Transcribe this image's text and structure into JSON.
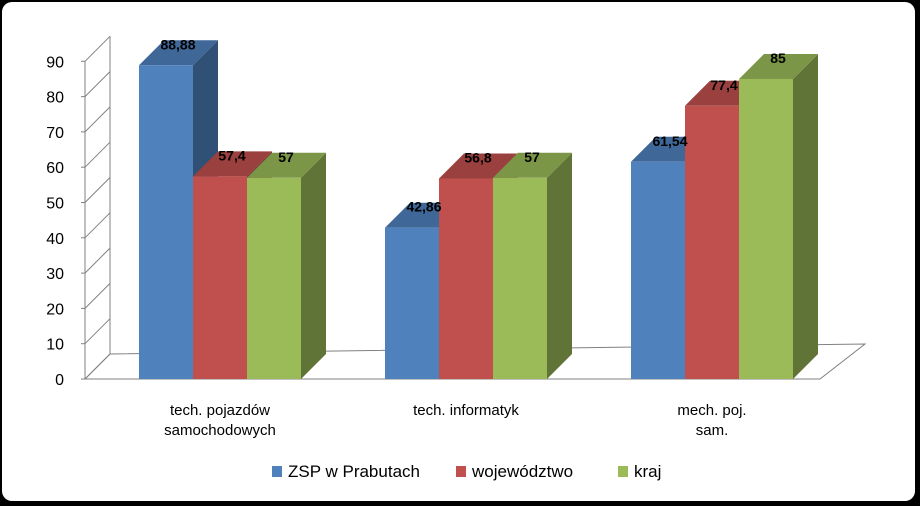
{
  "chart_data": {
    "type": "bar",
    "title": "",
    "xlabel": "",
    "ylabel": "",
    "ylim": [
      0,
      90
    ],
    "yticks": [
      0,
      10,
      20,
      30,
      40,
      50,
      60,
      70,
      80,
      90
    ],
    "categories": [
      [
        "tech. pojazdów",
        "samochodowych"
      ],
      [
        "tech. informatyk"
      ],
      [
        "mech. poj.",
        "sam."
      ]
    ],
    "series": [
      {
        "name": "ZSP w Prabutach",
        "values": [
          88.88,
          42.86,
          61.54
        ],
        "labels": [
          "88,88",
          "42,86",
          "61,54"
        ],
        "color": "#4f81bd"
      },
      {
        "name": "województwo",
        "values": [
          57.4,
          56.8,
          77.4
        ],
        "labels": [
          "57,4",
          "56,8",
          "77,4"
        ],
        "color": "#c0504d"
      },
      {
        "name": "kraj",
        "values": [
          57,
          57,
          85
        ],
        "labels": [
          "57",
          "57",
          "85"
        ],
        "color": "#9bbb59"
      }
    ],
    "grid": false,
    "legend": "bottom",
    "style": "3d-clustered-column"
  }
}
